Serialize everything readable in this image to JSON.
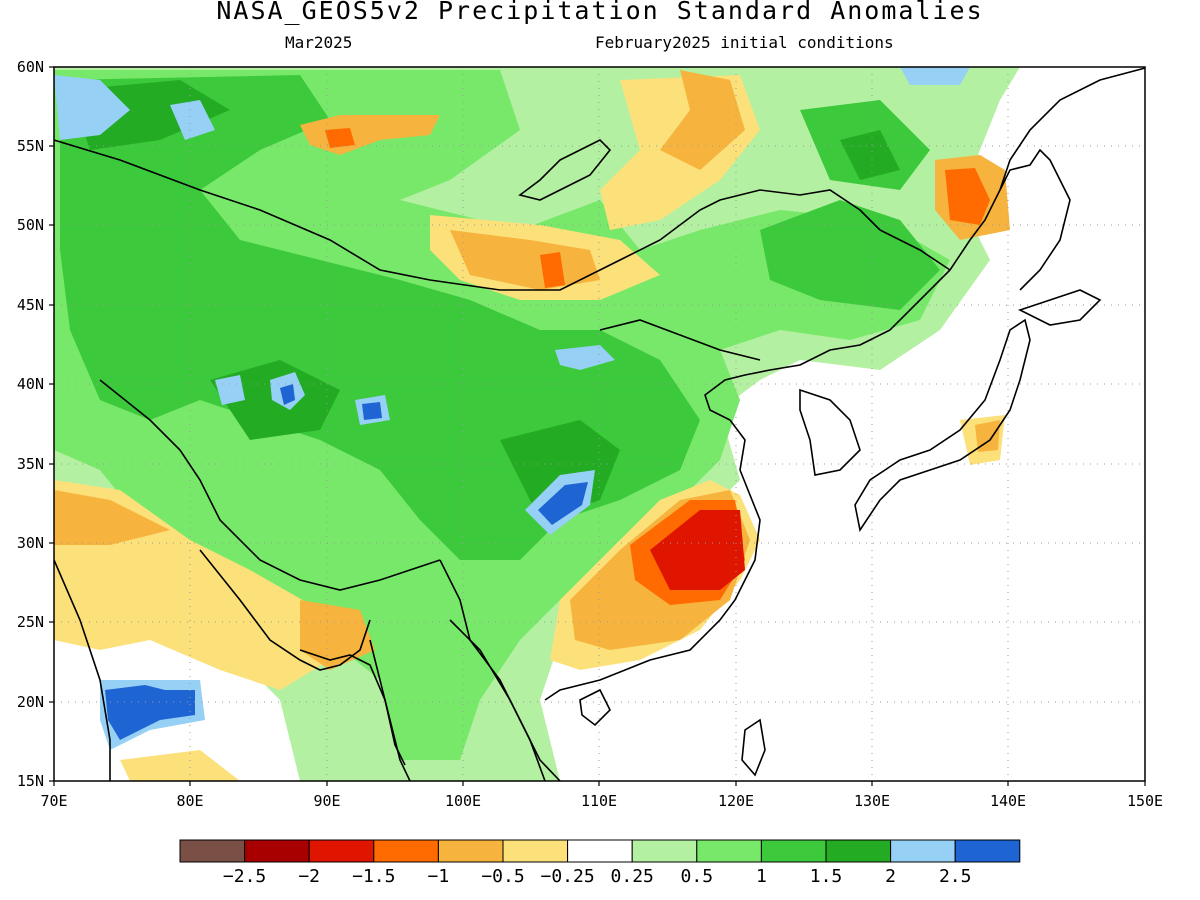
{
  "title": "NASA_GEOS5v2 Precipitation Standard Anomalies",
  "subtitle_left": "Mar2025",
  "subtitle_right": "February2025 initial conditions",
  "map": {
    "lon_range": [
      70,
      150
    ],
    "lat_range": [
      15,
      60
    ],
    "lon_ticks": [
      "70E",
      "80E",
      "90E",
      "100E",
      "110E",
      "120E",
      "130E",
      "140E",
      "150E"
    ],
    "lat_ticks": [
      "60N",
      "55N",
      "50N",
      "45N",
      "40N",
      "35N",
      "30N",
      "25N",
      "20N",
      "15N"
    ],
    "gridlines": "dotted"
  },
  "colorbar": {
    "colors": [
      "#7a4f45",
      "#a80000",
      "#e01500",
      "#ff6b00",
      "#f6b33d",
      "#fce07a",
      "#ffffff",
      "#b4f0a2",
      "#78e86b",
      "#3cc93b",
      "#23ab23",
      "#96d0f5",
      "#1e64d2"
    ],
    "labels": [
      "−2.5",
      "−2",
      "−1.5",
      "−1",
      "−0.5",
      "−0.25",
      "0.25",
      "0.5",
      "1",
      "1.5",
      "2",
      "2.5"
    ]
  },
  "palette": {
    "dark_blue": "#1e64d2",
    "light_blue": "#96d0f5",
    "dark_green": "#23ab23",
    "green": "#3cc93b",
    "lt_green": "#78e86b",
    "pale_green": "#b4f0a2",
    "pale_yellow": "#fce07a",
    "orange_lt": "#f6b33d",
    "orange": "#ff6b00",
    "red": "#e01500",
    "dark_red": "#a80000"
  }
}
